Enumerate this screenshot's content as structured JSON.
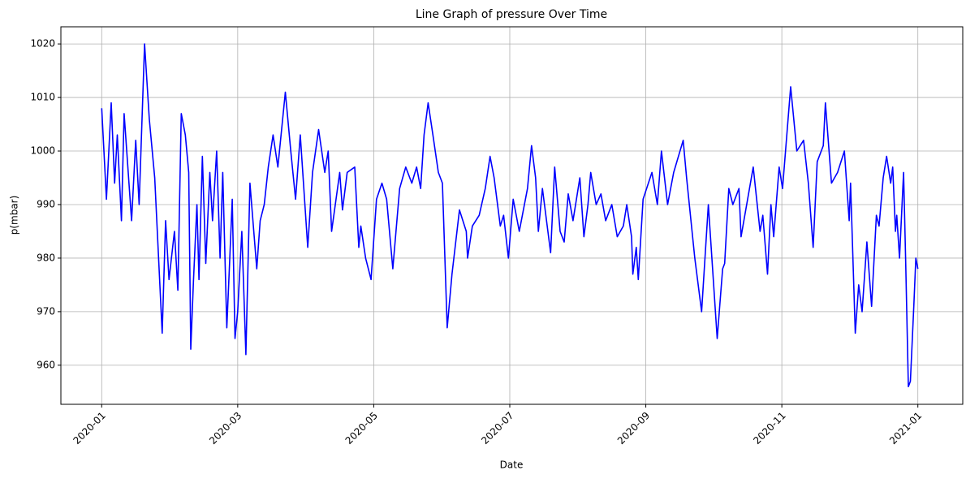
{
  "chart_data": {
    "type": "line",
    "title": "Line Graph of pressure Over Time",
    "x_label": "Date",
    "y_label": "p(mbar)",
    "x": [
      0,
      0.07,
      0.14,
      0.19,
      0.23,
      0.29,
      0.33,
      0.44,
      0.5,
      0.55,
      0.63,
      0.7,
      0.78,
      0.89,
      0.94,
      0.99,
      1.07,
      1.12,
      1.17,
      1.23,
      1.28,
      1.31,
      1.35,
      1.4,
      1.43,
      1.48,
      1.53,
      1.59,
      1.63,
      1.69,
      1.74,
      1.78,
      1.84,
      1.88,
      1.92,
      1.96,
      2,
      2.06,
      2.12,
      2.18,
      2.28,
      2.33,
      2.39,
      2.45,
      2.52,
      2.59,
      2.7,
      2.78,
      2.85,
      2.92,
      3.03,
      3.1,
      3.19,
      3.28,
      3.33,
      3.38,
      3.5,
      3.54,
      3.61,
      3.72,
      3.78,
      3.81,
      3.88,
      3.96,
      4.04,
      4.12,
      4.19,
      4.28,
      4.38,
      4.47,
      4.56,
      4.63,
      4.69,
      4.74,
      4.8,
      4.87,
      4.95,
      5.01,
      5.08,
      5.15,
      5.26,
      5.36,
      5.38,
      5.45,
      5.55,
      5.64,
      5.71,
      5.77,
      5.86,
      5.91,
      5.98,
      6.05,
      6.14,
      6.26,
      6.32,
      6.38,
      6.42,
      6.48,
      6.6,
      6.66,
      6.74,
      6.8,
      6.86,
      6.93,
      7.03,
      7.09,
      7.15,
      7.19,
      7.27,
      7.34,
      7.41,
      7.5,
      7.58,
      7.67,
      7.72,
      7.79,
      7.81,
      7.86,
      7.89,
      7.96,
      8.09,
      8.17,
      8.23,
      8.32,
      8.41,
      8.55,
      8.6,
      8.72,
      8.82,
      8.92,
      9.05,
      9.13,
      9.16,
      9.22,
      9.28,
      9.37,
      9.4,
      9.58,
      9.68,
      9.72,
      9.79,
      9.84,
      9.88,
      9.96,
      10.01,
      10.13,
      10.22,
      10.32,
      10.39,
      10.46,
      10.52,
      10.61,
      10.64,
      10.73,
      10.82,
      10.92,
      10.99,
      11.01,
      11.08,
      11.13,
      11.18,
      11.25,
      11.32,
      11.39,
      11.43,
      11.49,
      11.54,
      11.6,
      11.63,
      11.67,
      11.69,
      11.73,
      11.79,
      11.82,
      11.86,
      11.89,
      11.94,
      11.97,
      12
    ],
    "series": [
      {
        "name": "pressure",
        "color": "#0000ff",
        "values": [
          1008,
          991,
          1009,
          994,
          1003,
          987,
          1007,
          987,
          1002,
          990,
          1020,
          1006,
          995,
          966,
          987,
          976,
          985,
          974,
          1007,
          1003,
          996,
          963,
          976,
          990,
          976,
          999,
          979,
          996,
          987,
          1000,
          980,
          996,
          967,
          979,
          991,
          965,
          970,
          985,
          962,
          994,
          978,
          987,
          990,
          997,
          1003,
          997,
          1011,
          1000,
          991,
          1003,
          982,
          996,
          1004,
          996,
          1000,
          985,
          996,
          989,
          996,
          997,
          982,
          986,
          980,
          976,
          991,
          994,
          991,
          978,
          993,
          997,
          994,
          997,
          993,
          1003,
          1009,
          1003,
          996,
          994,
          967,
          977,
          989,
          985,
          980,
          986,
          988,
          993,
          999,
          995,
          986,
          988,
          980,
          991,
          985,
          993,
          1001,
          995,
          985,
          993,
          981,
          997,
          985,
          983,
          992,
          987,
          995,
          984,
          990,
          996,
          990,
          992,
          987,
          990,
          984,
          986,
          990,
          984,
          977,
          982,
          976,
          991,
          996,
          990,
          1000,
          990,
          996,
          1002,
          995,
          980,
          970,
          990,
          965,
          978,
          979,
          993,
          990,
          993,
          984,
          997,
          985,
          988,
          977,
          990,
          984,
          997,
          993,
          1012,
          1000,
          1002,
          994,
          982,
          998,
          1001,
          1009,
          994,
          996,
          1000,
          987,
          994,
          966,
          975,
          970,
          983,
          971,
          988,
          986,
          995,
          999,
          994,
          997,
          985,
          988,
          980,
          996,
          980,
          956,
          957,
          971,
          980,
          978
        ]
      }
    ],
    "xlim": [
      -0.6,
      12.66
    ],
    "xticks": [
      {
        "value": 0,
        "label": "2020-01"
      },
      {
        "value": 2,
        "label": "2020-03"
      },
      {
        "value": 4,
        "label": "2020-05"
      },
      {
        "value": 6,
        "label": "2020-07"
      },
      {
        "value": 8,
        "label": "2020-09"
      },
      {
        "value": 10,
        "label": "2020-11"
      },
      {
        "value": 12,
        "label": "2021-01"
      }
    ],
    "ylim": [
      952.7,
      1023.2
    ],
    "yticks": [
      960,
      970,
      980,
      990,
      1000,
      1010,
      1020
    ],
    "grid": true
  }
}
